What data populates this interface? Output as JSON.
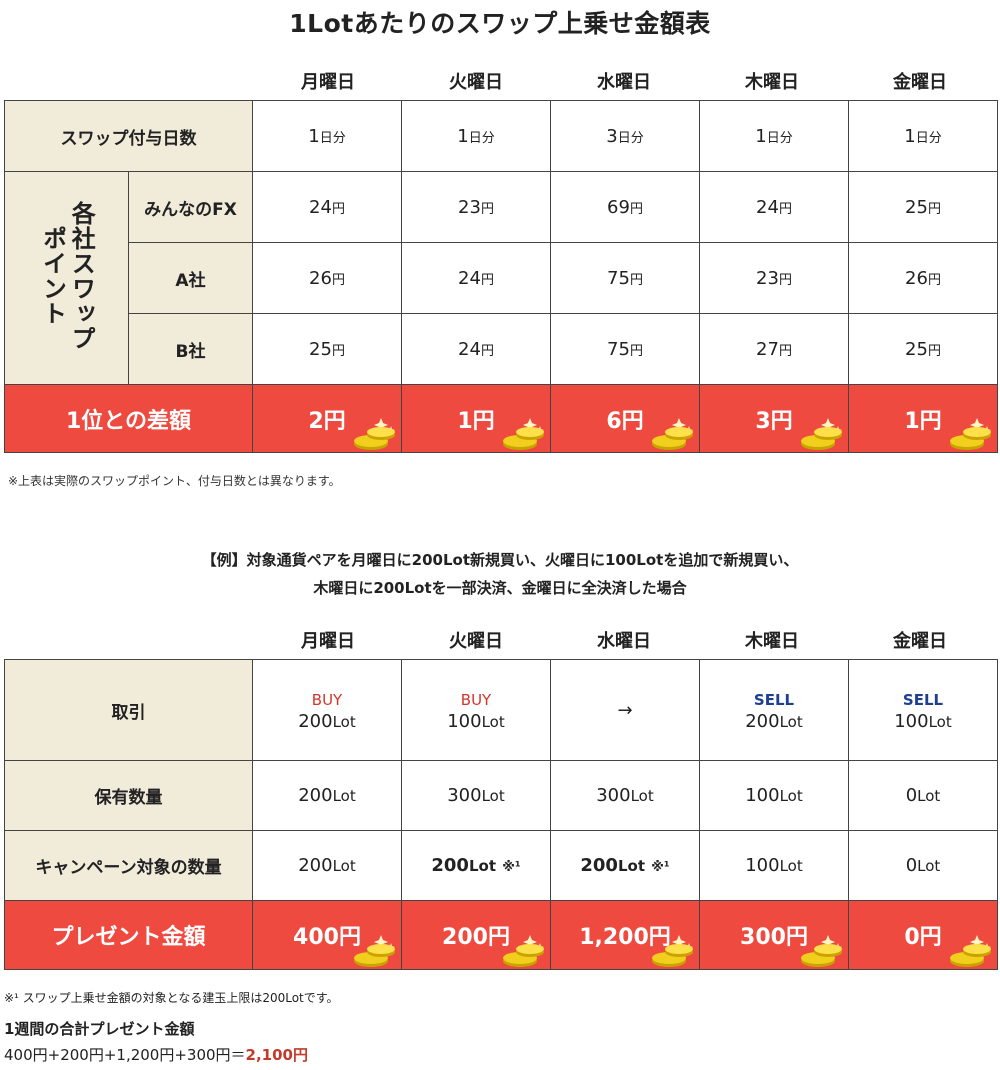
{
  "title": "1Lotあたりのスワップ上乗せ金額表",
  "days": [
    "月曜日",
    "火曜日",
    "水曜日",
    "木曜日",
    "金曜日"
  ],
  "table1": {
    "swap_days_label": "スワップ付与日数",
    "swap_days": [
      {
        "n": "1",
        "u": "日分"
      },
      {
        "n": "1",
        "u": "日分"
      },
      {
        "n": "3",
        "u": "日分"
      },
      {
        "n": "1",
        "u": "日分"
      },
      {
        "n": "1",
        "u": "日分"
      }
    ],
    "group_label_line1": "各社スワップ",
    "group_label_line2": "ポイント",
    "rows": [
      {
        "label": "みんなのFX",
        "values": [
          "24",
          "23",
          "69",
          "24",
          "25"
        ]
      },
      {
        "label": "A社",
        "values": [
          "26",
          "24",
          "75",
          "23",
          "26"
        ]
      },
      {
        "label": "B社",
        "values": [
          "25",
          "24",
          "75",
          "27",
          "25"
        ]
      }
    ],
    "unit": "円",
    "diff_label": "1位との差額",
    "diff": [
      "2円",
      "1円",
      "6円",
      "3円",
      "1円"
    ]
  },
  "note1": "※上表は実際のスワップポイント、付与日数とは異なります。",
  "example_line1": "【例】対象通貨ペアを月曜日に200Lot新規買い、火曜日に100Lotを追加で新規買い、",
  "example_line2": "木曜日に200Lotを一部決済、金曜日に全決済した場合",
  "table2": {
    "trade_label": "取引",
    "trades": [
      {
        "side": "BUY",
        "kind": "buy",
        "qty": "200",
        "u": "Lot"
      },
      {
        "side": "BUY",
        "kind": "buy",
        "qty": "100",
        "u": "Lot"
      },
      {
        "side": "",
        "kind": "arrow",
        "qty": "→",
        "u": ""
      },
      {
        "side": "SELL",
        "kind": "sell",
        "qty": "200",
        "u": "Lot"
      },
      {
        "side": "SELL",
        "kind": "sell",
        "qty": "100",
        "u": "Lot"
      }
    ],
    "holding_label": "保有数量",
    "holding": [
      "200",
      "300",
      "300",
      "100",
      "0"
    ],
    "campaign_label": "キャンペーン対象の数量",
    "campaign": [
      {
        "qty": "200",
        "u": "Lot",
        "mark": "",
        "bold": false
      },
      {
        "qty": "200",
        "u": "Lot",
        "mark": "※¹",
        "bold": true
      },
      {
        "qty": "200",
        "u": "Lot",
        "mark": "※¹",
        "bold": true
      },
      {
        "qty": "100",
        "u": "Lot",
        "mark": "",
        "bold": false
      },
      {
        "qty": "0",
        "u": "Lot",
        "mark": "",
        "bold": false
      }
    ],
    "lot_unit": "Lot",
    "present_label": "プレゼント金額",
    "present": [
      "400円",
      "200円",
      "1,200円",
      "300円",
      "0円"
    ]
  },
  "footnote": "※¹ スワップ上乗せ金額の対象となる建玉上限は200Lotです。",
  "total_heading": "1週間の合計プレゼント金額",
  "total_formula": "400円+200円+1,200円+300円＝",
  "total_value": "2,100円"
}
